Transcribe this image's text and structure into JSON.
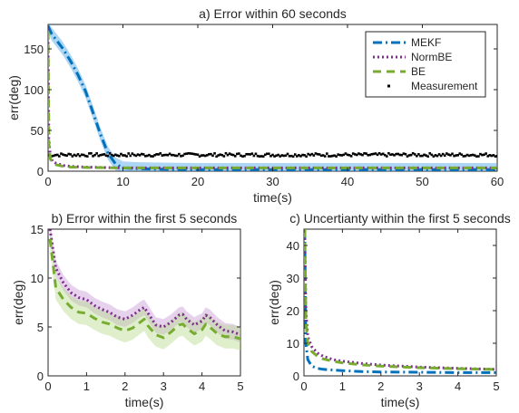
{
  "chart_data": [
    {
      "id": "a",
      "type": "line",
      "title": "a) Error within 60 seconds",
      "xlabel": "time(s)",
      "ylabel": "err(deg)",
      "xlim": [
        0,
        60
      ],
      "ylim": [
        0,
        180
      ],
      "xticks": [
        0,
        10,
        20,
        30,
        40,
        50,
        60
      ],
      "yticks": [
        0,
        50,
        100,
        150
      ],
      "grid": false,
      "legend": {
        "placement": "top-right",
        "entries": [
          {
            "name": "MEKF",
            "color": "#0072BD",
            "style": "dash-dot"
          },
          {
            "name": "NormBE",
            "color": "#7E2F8E",
            "style": "dotted"
          },
          {
            "name": "BE",
            "color": "#77AC30",
            "style": "dashed"
          },
          {
            "name": "Measurement",
            "color": "#000000",
            "style": "markers"
          }
        ]
      },
      "series": [
        {
          "name": "MEKF",
          "x": [
            0,
            0.5,
            1,
            2,
            3,
            4,
            5,
            6,
            7,
            8,
            9,
            10,
            12,
            15,
            20,
            30,
            40,
            50,
            60
          ],
          "values": [
            178,
            168,
            162,
            150,
            135,
            118,
            98,
            72,
            45,
            22,
            9,
            4,
            3,
            2.5,
            2,
            2,
            2,
            2,
            2
          ],
          "band": 8
        },
        {
          "name": "NormBE",
          "x": [
            0,
            0.1,
            0.3,
            0.6,
            1,
            2,
            3,
            5,
            10,
            20,
            30,
            40,
            50,
            60
          ],
          "values": [
            175,
            40,
            18,
            12,
            10,
            7,
            6,
            5,
            4,
            4,
            4,
            4,
            4,
            4
          ]
        },
        {
          "name": "BE",
          "x": [
            0,
            0.1,
            0.3,
            0.6,
            1,
            2,
            3,
            5,
            10,
            20,
            30,
            40,
            50,
            60
          ],
          "values": [
            172,
            35,
            15,
            10,
            8,
            6,
            5,
            4.5,
            4,
            4,
            4,
            4,
            4,
            4
          ]
        },
        {
          "name": "Measurement",
          "x_range": [
            0,
            60
          ],
          "approx_value": 20,
          "spread": 2
        }
      ]
    },
    {
      "id": "b",
      "type": "line",
      "title": "b) Error within the first 5 seconds",
      "xlabel": "time(s)",
      "ylabel": "err(deg)",
      "xlim": [
        0,
        5
      ],
      "ylim": [
        0,
        15
      ],
      "xticks": [
        0,
        1,
        2,
        3,
        4,
        5
      ],
      "yticks": [
        0,
        5,
        10,
        15
      ],
      "grid": false,
      "series": [
        {
          "name": "NormBE",
          "x": [
            0.05,
            0.2,
            0.4,
            0.6,
            0.8,
            1.0,
            1.2,
            1.4,
            1.6,
            1.8,
            2.0,
            2.2,
            2.4,
            2.5,
            2.6,
            2.8,
            3.0,
            3.2,
            3.4,
            3.5,
            3.6,
            3.8,
            4.0,
            4.1,
            4.2,
            4.4,
            4.6,
            4.8,
            5.0
          ],
          "values": [
            15,
            11,
            9.5,
            8.5,
            8,
            7.8,
            7.2,
            6.8,
            6.5,
            6,
            5.8,
            6.2,
            6.8,
            7,
            6.4,
            5.2,
            5,
            5.5,
            6.2,
            6.3,
            5.8,
            5.2,
            5.6,
            6.2,
            6.0,
            5.2,
            4.6,
            4.5,
            4.2
          ],
          "band": 0.8
        },
        {
          "name": "BE",
          "x": [
            0.05,
            0.2,
            0.4,
            0.6,
            0.8,
            1.0,
            1.2,
            1.4,
            1.6,
            1.8,
            2.0,
            2.2,
            2.4,
            2.5,
            2.6,
            2.8,
            3.0,
            3.2,
            3.4,
            3.5,
            3.6,
            3.8,
            4.0,
            4.1,
            4.2,
            4.4,
            4.6,
            4.8,
            5.0
          ],
          "values": [
            14,
            9,
            7.8,
            7,
            6.5,
            6.4,
            5.9,
            5.5,
            5.3,
            4.9,
            4.6,
            4.9,
            5.5,
            5.8,
            5.1,
            4.2,
            3.9,
            4.5,
            5.2,
            5.3,
            4.9,
            4.3,
            4.7,
            5.3,
            5.0,
            4.3,
            4.0,
            4.0,
            3.8
          ],
          "band": 1.2
        }
      ]
    },
    {
      "id": "c",
      "type": "line",
      "title": "c) Uncertianty within the first 5 seconds",
      "xlabel": "time(s)",
      "ylabel": "err(deg)",
      "xlim": [
        0,
        5
      ],
      "ylim": [
        0,
        45
      ],
      "xticks": [
        0,
        1,
        2,
        3,
        4,
        5
      ],
      "yticks": [
        0,
        10,
        20,
        30,
        40
      ],
      "grid": false,
      "series": [
        {
          "name": "MEKF",
          "x": [
            0.02,
            0.05,
            0.1,
            0.2,
            0.35,
            0.5,
            0.75,
            1.0,
            1.5,
            2.0,
            3.0,
            4.0,
            5.0
          ],
          "values": [
            45,
            10,
            5,
            3,
            2.3,
            2,
            1.8,
            1.6,
            1.3,
            1.2,
            1.1,
            1.0,
            1.0
          ]
        },
        {
          "name": "NormBE",
          "x": [
            0.02,
            0.05,
            0.1,
            0.2,
            0.35,
            0.5,
            0.75,
            1.0,
            1.5,
            2.0,
            3.0,
            4.0,
            5.0
          ],
          "values": [
            45,
            20,
            12,
            9,
            7,
            6,
            5,
            4.5,
            3.8,
            3.3,
            2.7,
            2.3,
            2.0
          ]
        },
        {
          "name": "BE",
          "x": [
            0.02,
            0.05,
            0.1,
            0.2,
            0.35,
            0.5,
            0.75,
            1.0,
            1.5,
            2.0,
            3.0,
            4.0,
            5.0
          ],
          "values": [
            45,
            17,
            10,
            7.5,
            6,
            5.2,
            4.5,
            4,
            3.4,
            3.0,
            2.5,
            2.2,
            2.0
          ]
        }
      ]
    }
  ]
}
